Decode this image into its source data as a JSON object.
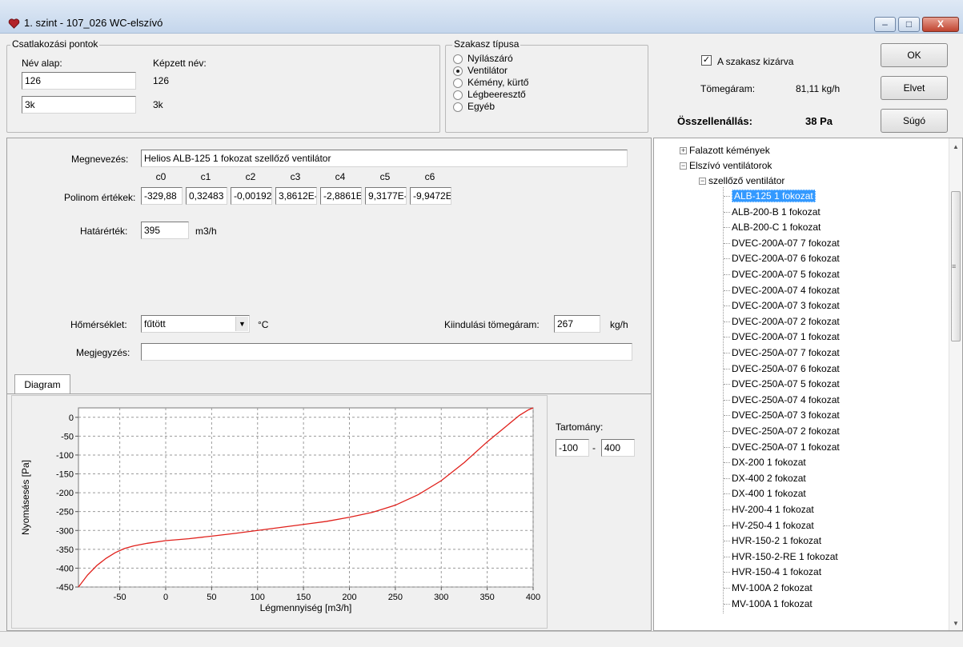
{
  "window": {
    "title": "1. szint - 107_026 WC-elszívó",
    "minimize": "–",
    "maximize": "□",
    "close": "X"
  },
  "connection": {
    "legend": "Csatlakozási pontok",
    "base_label": "Név alap:",
    "formed_label": "Képzett név:",
    "rows": [
      {
        "base": "126",
        "formed": "126"
      },
      {
        "base": "3k",
        "formed": "3k"
      }
    ]
  },
  "section_type": {
    "legend": "Szakasz típusa",
    "options": [
      "Nyílászáró",
      "Ventilátor",
      "Kémény, kürtő",
      "Légbeeresztő",
      "Egyéb"
    ],
    "selected": "Ventilátor"
  },
  "summary": {
    "exclude_label": "A szakasz kizárva",
    "exclude_checked": true,
    "mass_flow_label": "Tömegáram:",
    "mass_flow_value": "81,11 kg/h",
    "total_resistance_label": "Összellenállás:",
    "total_resistance_value": "38 Pa"
  },
  "buttons": {
    "ok": "OK",
    "cancel": "Elvet",
    "help": "Súgó"
  },
  "form": {
    "name_label": "Megnevezés:",
    "name_value": "Helios ALB-125 1 fokozat szellőző ventilátor",
    "poly_label": "Polinom értékek:",
    "coef_headers": [
      "c0",
      "c1",
      "c2",
      "c3",
      "c4",
      "c5",
      "c6"
    ],
    "coef_values": [
      "-329,88",
      "0,32483",
      "-0,00192",
      "3,8612E-",
      "-2,8861E",
      "9,3177E-",
      "-9,9472E"
    ],
    "limit_label": "Határérték:",
    "limit_value": "395",
    "limit_unit": "m3/h",
    "temp_label": "Hőmérséklet:",
    "temp_value": "fűtött",
    "temp_unit": "°C",
    "start_flow_label": "Kiindulási tömegáram:",
    "start_flow_value": "267",
    "start_flow_unit": "kg/h",
    "note_label": "Megjegyzés:",
    "note_value": ""
  },
  "tab": {
    "label": "Diagram"
  },
  "range": {
    "label": "Tartomány:",
    "from": "-100",
    "sep": "-",
    "to": "400"
  },
  "chart_data": {
    "type": "line",
    "xlabel": "Légmennyiség [m3/h]",
    "ylabel": "Nyomásesés [Pa]",
    "xlim": [
      -95,
      400
    ],
    "ylim": [
      -450,
      25
    ],
    "xticks": [
      -50,
      0,
      50,
      100,
      150,
      200,
      250,
      300,
      350,
      400
    ],
    "yticks": [
      0,
      -50,
      -100,
      -150,
      -200,
      -250,
      -300,
      -350,
      -400,
      -450
    ],
    "grid": true,
    "line_color": "#e0201b",
    "series": [
      {
        "x": [
          -95,
          -85,
          -75,
          -65,
          -55,
          -45,
          -35,
          -20,
          0,
          25,
          50,
          75,
          100,
          125,
          150,
          175,
          200,
          225,
          250,
          275,
          300,
          325,
          350,
          370,
          385,
          395,
          400
        ],
        "y": [
          -450,
          -418,
          -393,
          -374,
          -359,
          -348,
          -341,
          -334,
          -327,
          -322,
          -315,
          -308,
          -300,
          -292,
          -284,
          -276,
          -265,
          -252,
          -233,
          -205,
          -168,
          -120,
          -65,
          -25,
          5,
          20,
          25
        ]
      }
    ]
  },
  "tree": {
    "root1": "Falazott kémények",
    "root2": "Elszívó ventilátorok",
    "group": "szellőző ventilátor",
    "items": [
      "ALB-125 1 fokozat",
      "ALB-200-B 1 fokozat",
      "ALB-200-C 1 fokozat",
      "DVEC-200A-07 7 fokozat",
      "DVEC-200A-07 6 fokozat",
      "DVEC-200A-07 5 fokozat",
      "DVEC-200A-07 4 fokozat",
      "DVEC-200A-07 3 fokozat",
      "DVEC-200A-07 2 fokozat",
      "DVEC-200A-07 1 fokozat",
      "DVEC-250A-07 7 fokozat",
      "DVEC-250A-07 6 fokozat",
      "DVEC-250A-07 5 fokozat",
      "DVEC-250A-07 4 fokozat",
      "DVEC-250A-07 3 fokozat",
      "DVEC-250A-07 2 fokozat",
      "DVEC-250A-07 1 fokozat",
      "DX-200 1 fokozat",
      "DX-400 2 fokozat",
      "DX-400 1 fokozat",
      "HV-200-4 1 fokozat",
      "HV-250-4 1 fokozat",
      "HVR-150-2 1 fokozat",
      "HVR-150-2-RE 1 fokozat",
      "HVR-150-4 1 fokozat",
      "MV-100A 2 fokozat",
      "MV-100A 1 fokozat"
    ],
    "selected_index": 0
  }
}
